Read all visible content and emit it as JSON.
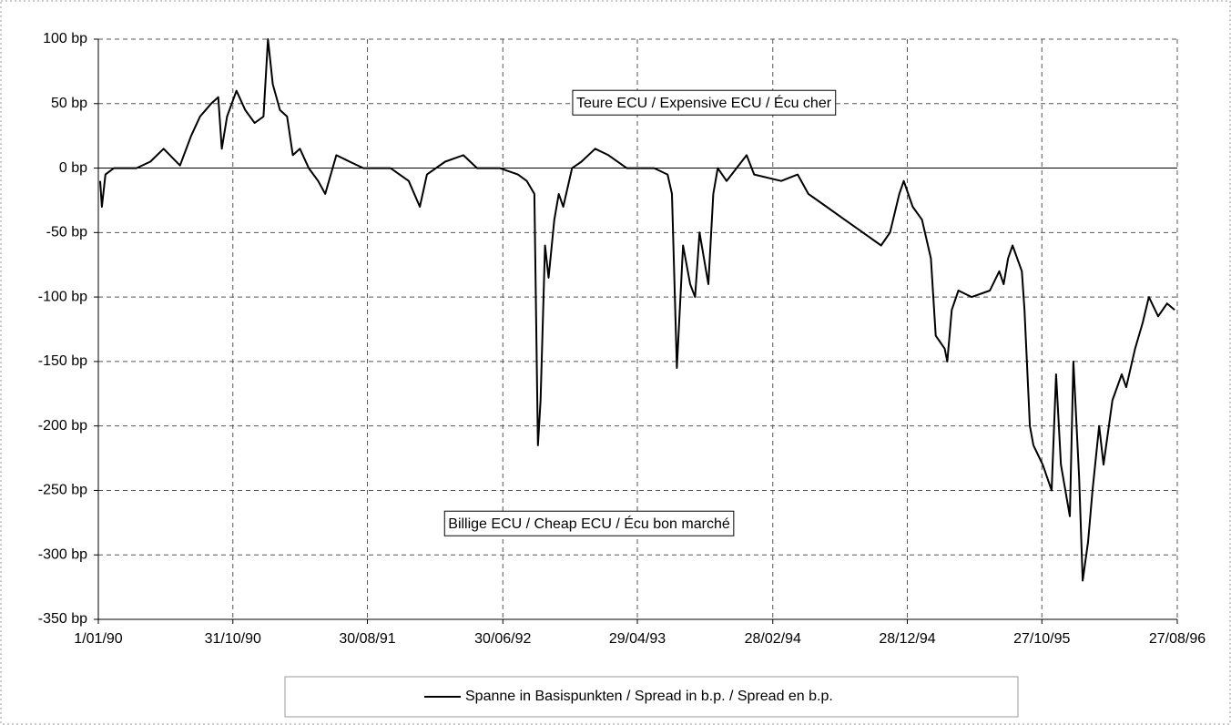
{
  "chart_data": {
    "type": "line",
    "annotations": [
      "Teure ECU / Expensive ECU / Écu cher",
      "Billige ECU / Cheap ECU / Écu bon marché"
    ],
    "xlim": [
      "1/01/90",
      "27/08/96"
    ],
    "xticks": [
      "1/01/90",
      "31/10/90",
      "30/08/91",
      "30/06/92",
      "29/04/93",
      "28/02/94",
      "28/12/94",
      "27/10/95",
      "27/08/96"
    ],
    "ylim": [
      -350,
      100
    ],
    "yticks": [
      {
        "value": 100,
        "label": "100 bp"
      },
      {
        "value": 50,
        "label": "50 bp"
      },
      {
        "value": 0,
        "label": "0 bp"
      },
      {
        "value": -50,
        "label": "-50 bp"
      },
      {
        "value": -100,
        "label": "-100 bp"
      },
      {
        "value": -150,
        "label": "-150 bp"
      },
      {
        "value": -200,
        "label": "-200 bp"
      },
      {
        "value": -250,
        "label": "-250 bp"
      },
      {
        "value": -300,
        "label": "-300 bp"
      },
      {
        "value": -350,
        "label": "-350 bp"
      }
    ],
    "grid": true,
    "legend": "bottom",
    "x": [
      "5/01/90",
      "9/01/90",
      "17/01/90",
      "5/02/90",
      "28/03/90",
      "28/04/90",
      "28/05/90",
      "4/07/90",
      "29/07/90",
      "18/08/90",
      "12/09/90",
      "28/09/90",
      "6/10/90",
      "18/10/90",
      "8/11/90",
      "28/11/90",
      "19/12/90",
      "8/01/91",
      "18/01/91",
      "29/01/91",
      "14/02/91",
      "2/03/91",
      "15/03/91",
      "31/03/91",
      "20/04/91",
      "11/05/91",
      "27/05/91",
      "21/06/91",
      "21/07/91",
      "21/08/91",
      "21/10/91",
      "1/12/91",
      "26/12/91",
      "11/01/92",
      "21/02/92",
      "2/04/92",
      "3/05/92",
      "23/06/92",
      "3/08/92",
      "23/08/92",
      "9/09/92",
      "17/09/92",
      "23/09/92",
      "3/10/92",
      "11/10/92",
      "24/10/92",
      "3/11/92",
      "13/11/92",
      "3/12/92",
      "24/12/92",
      "24/01/93",
      "23/02/93",
      "5/04/93",
      "6/06/93",
      "6/07/93",
      "16/07/93",
      "27/07/93",
      "10/08/93",
      "26/08/93",
      "6/09/93",
      "16/09/93",
      "6/10/93",
      "17/10/93",
      "27/10/93",
      "16/11/93",
      "31/12/93",
      "17/01/94",
      "19/03/94",
      "25/04/94",
      "19/05/94",
      "29/06/94",
      "9/08/94",
      "19/09/94",
      "30/10/94",
      "19/11/94",
      "10/12/94",
      "20/12/94",
      "9/01/95",
      "30/01/95",
      "19/02/95",
      "2/03/95",
      "22/03/95",
      "28/03/95",
      "7/04/95",
      "22/04/95",
      "22/05/95",
      "2/07/95",
      "23/07/95",
      "2/08/95",
      "12/08/95",
      "22/08/95",
      "12/09/95",
      "18/09/95",
      "30/09/95",
      "8/10/95",
      "29/10/95",
      "18/11/95",
      "28/11/95",
      "9/12/95",
      "29/12/95",
      "6/01/96",
      "19/01/96",
      "27/01/96",
      "8/02/96",
      "18/02/96",
      "4/03/96",
      "14/03/96",
      "3/04/96",
      "24/04/96",
      "4/05/96",
      "24/05/96",
      "10/06/96",
      "24/06/96",
      "15/07/96",
      "4/08/96",
      "21/08/96"
    ],
    "series": [
      {
        "name": "Spanne in Basispunkten / Spread in b.p. / Spread en b.p.",
        "color": "#000000",
        "values": [
          -10,
          -30,
          -5,
          0,
          0,
          5,
          15,
          2,
          25,
          40,
          50,
          55,
          15,
          40,
          60,
          45,
          35,
          40,
          100,
          65,
          45,
          40,
          10,
          15,
          0,
          -10,
          -20,
          10,
          5,
          0,
          0,
          -10,
          -30,
          -5,
          5,
          10,
          0,
          0,
          -5,
          -10,
          -20,
          -215,
          -180,
          -60,
          -85,
          -40,
          -20,
          -30,
          0,
          5,
          15,
          10,
          0,
          0,
          -5,
          -20,
          -155,
          -60,
          -90,
          -100,
          -50,
          -90,
          -20,
          0,
          -10,
          10,
          -5,
          -10,
          -5,
          -20,
          -30,
          -40,
          -50,
          -60,
          -50,
          -20,
          -10,
          -30,
          -40,
          -70,
          -130,
          -140,
          -150,
          -110,
          -95,
          -100,
          -95,
          -80,
          -90,
          -70,
          -60,
          -80,
          -110,
          -200,
          -215,
          -230,
          -250,
          -160,
          -230,
          -270,
          -150,
          -240,
          -320,
          -290,
          -250,
          -200,
          -230,
          -180,
          -160,
          -170,
          -140,
          -120,
          -100,
          -115,
          -105,
          -110
        ]
      }
    ]
  }
}
